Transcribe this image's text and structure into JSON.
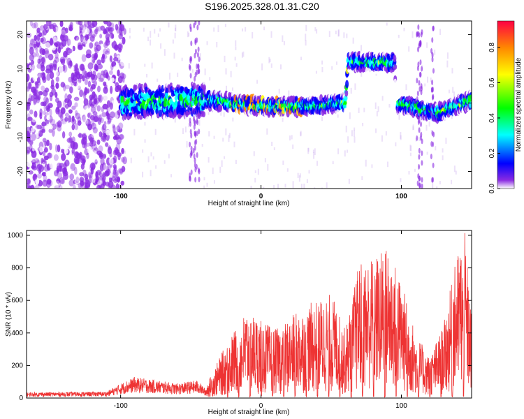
{
  "title": "S196.2025.328.01.31.C20",
  "chart_data": [
    {
      "type": "heatmap",
      "xlabel": "Height of straight line (km)",
      "ylabel": "Frequency (Hz)",
      "xlim": [
        -167,
        150
      ],
      "ylim": [
        -25,
        24
      ],
      "xticks": [
        -100,
        0,
        100
      ],
      "yticks": [
        -20,
        -10,
        0,
        10,
        20
      ],
      "colorbar": {
        "label": "Normalized spectral amplitude",
        "range": [
          0,
          0.95
        ],
        "ticks": [
          "0.0",
          "0.2",
          "0.4",
          "0.6",
          "0.8"
        ],
        "tick_values": [
          0.0,
          0.2,
          0.4,
          0.6,
          0.8
        ]
      },
      "ridge": [
        {
          "x": -100,
          "y": 0
        },
        {
          "x": -40,
          "y": 1
        },
        {
          "x": -20,
          "y": 0
        },
        {
          "x": 0,
          "y": -1
        },
        {
          "x": 30,
          "y": -1
        },
        {
          "x": 60,
          "y": 0
        },
        {
          "x": 62,
          "y": 12
        },
        {
          "x": 95,
          "y": 12
        },
        {
          "x": 97,
          "y": 0
        },
        {
          "x": 125,
          "y": -3
        },
        {
          "x": 150,
          "y": 1
        }
      ]
    },
    {
      "type": "line",
      "xlabel": "Height of straight line (km)",
      "ylabel": "SNR (10 * v/v)",
      "xlim": [
        -167,
        150
      ],
      "ylim": [
        0,
        1030
      ],
      "xticks": [
        -100,
        0,
        100
      ],
      "yticks": [
        0,
        200,
        400,
        600,
        800,
        1000
      ],
      "color": "#ee3333",
      "envelope": [
        {
          "x": -167,
          "y": 35
        },
        {
          "x": -110,
          "y": 40
        },
        {
          "x": -100,
          "y": 90
        },
        {
          "x": -90,
          "y": 130
        },
        {
          "x": -60,
          "y": 90
        },
        {
          "x": -45,
          "y": 110
        },
        {
          "x": -40,
          "y": 60
        },
        {
          "x": -25,
          "y": 330
        },
        {
          "x": -10,
          "y": 550
        },
        {
          "x": 10,
          "y": 420
        },
        {
          "x": 30,
          "y": 560
        },
        {
          "x": 50,
          "y": 650
        },
        {
          "x": 60,
          "y": 420
        },
        {
          "x": 70,
          "y": 840
        },
        {
          "x": 85,
          "y": 900
        },
        {
          "x": 90,
          "y": 950
        },
        {
          "x": 100,
          "y": 720
        },
        {
          "x": 110,
          "y": 400
        },
        {
          "x": 120,
          "y": 250
        },
        {
          "x": 130,
          "y": 450
        },
        {
          "x": 140,
          "y": 900
        },
        {
          "x": 145,
          "y": 1030
        },
        {
          "x": 150,
          "y": 500
        }
      ]
    }
  ]
}
